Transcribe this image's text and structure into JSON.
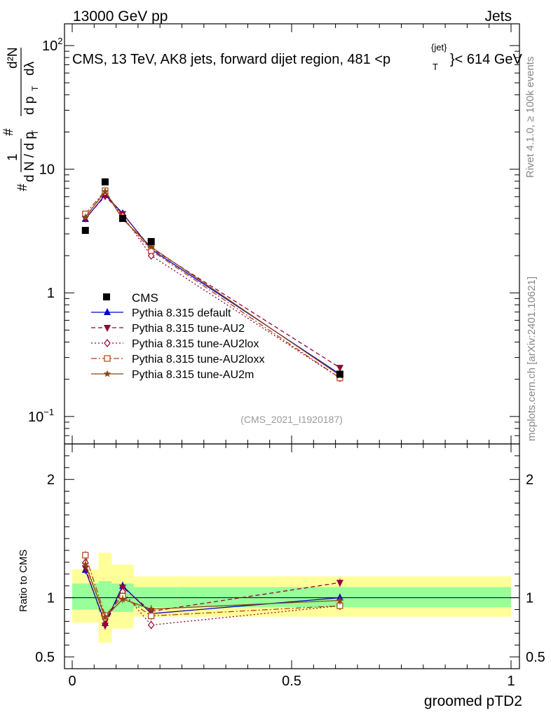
{
  "header": {
    "left": "13000 GeV pp",
    "right": "Jets"
  },
  "side": {
    "rivet": "Rivet 4.1.0, ≥ 100k events",
    "mcplots": "mcplots.cern.ch [arXiv:2401.10621]"
  },
  "chart_data": {
    "type": "line",
    "title": "CMS, 13 TeV, AK8 jets, forward dijet region, 481 <p_T^{jet}< 614 GeV",
    "title_parts": {
      "pre": "CMS, 13 TeV, AK8 jets, forward dijet region, 481 <p",
      "sup": "{jet}",
      "sub": "T",
      "post": "}< 614 GeV"
    },
    "watermark": "(CMS_2021_I1920187)",
    "xlabel": "groomed pTD2",
    "ylabel": "1/N dN/dp_T # d^2N/dp_T dλ",
    "ylabel_parts": {
      "hash1": "#",
      "one": "1",
      "dN": "d N / d p",
      "T1": "T",
      "hash2": "#",
      "dpT": "d p",
      "T2": "T",
      "d2N": "d²N",
      "dlambda": "dλ"
    },
    "ratio_ylabel": "Ratio to CMS",
    "xlim": [
      0,
      1
    ],
    "ylim": [
      0.06,
      150
    ],
    "ylog": true,
    "ratio_ylim": [
      0.4,
      2.3
    ],
    "xticks": [
      {
        "v": 0,
        "label": "0"
      },
      {
        "v": 0.5,
        "label": "0.5"
      },
      {
        "v": 1,
        "label": "1"
      }
    ],
    "yticks": [
      {
        "v": 0.1,
        "base": "10",
        "exp": "−1"
      },
      {
        "v": 1,
        "base": "1",
        "exp": ""
      },
      {
        "v": 10,
        "base": "10",
        "exp": ""
      },
      {
        "v": 100,
        "base": "10",
        "exp": "2"
      }
    ],
    "ratio_yticks": [
      {
        "v": 0.5,
        "label": "0.5"
      },
      {
        "v": 1,
        "label": "1"
      },
      {
        "v": 2,
        "label": "2"
      }
    ],
    "legend_position": "center-left",
    "x": [
      0.03,
      0.075,
      0.115,
      0.18,
      0.61
    ],
    "bins": [
      [
        0,
        0.06
      ],
      [
        0.06,
        0.09
      ],
      [
        0.09,
        0.14
      ],
      [
        0.14,
        0.24
      ],
      [
        0.24,
        1.0
      ]
    ],
    "data": {
      "name": "CMS",
      "values": [
        3.2,
        7.9,
        4.0,
        2.6,
        0.22
      ],
      "band_stat": [
        [
          0.9,
          1.12
        ],
        [
          0.88,
          1.14
        ],
        [
          0.88,
          1.12
        ],
        [
          0.92,
          1.09
        ],
        [
          0.92,
          1.09
        ]
      ],
      "band_total": [
        [
          0.79,
          1.24
        ],
        [
          0.62,
          1.38
        ],
        [
          0.74,
          1.28
        ],
        [
          0.84,
          1.18
        ],
        [
          0.84,
          1.18
        ]
      ]
    },
    "series": [
      {
        "name": "Pythia 8.315 default",
        "color": "#0000cc",
        "marker": "triangle-up",
        "dash": "",
        "values": [
          3.95,
          6.2,
          4.4,
          2.25,
          0.22
        ]
      },
      {
        "name": "Pythia 8.315 tune-AU2",
        "color": "#990033",
        "marker": "triangle-down",
        "dash": "6,4",
        "values": [
          4.0,
          6.05,
          4.35,
          2.3,
          0.248
        ]
      },
      {
        "name": "Pythia 8.315 tune-AU2lox",
        "color": "#990033",
        "marker": "diamond-open",
        "dash": "2,3",
        "values": [
          4.15,
          6.5,
          4.2,
          2.0,
          0.205
        ]
      },
      {
        "name": "Pythia 8.315 tune-AU2loxx",
        "color": "#b0400e",
        "marker": "square-open",
        "dash": "8,3,2,3",
        "values": [
          4.35,
          6.7,
          4.05,
          2.2,
          0.205
        ]
      },
      {
        "name": "Pythia 8.315 tune-AU2m",
        "color": "#8b4513",
        "marker": "star",
        "dash": "",
        "values": [
          4.1,
          6.6,
          3.95,
          2.35,
          0.215
        ]
      }
    ]
  }
}
